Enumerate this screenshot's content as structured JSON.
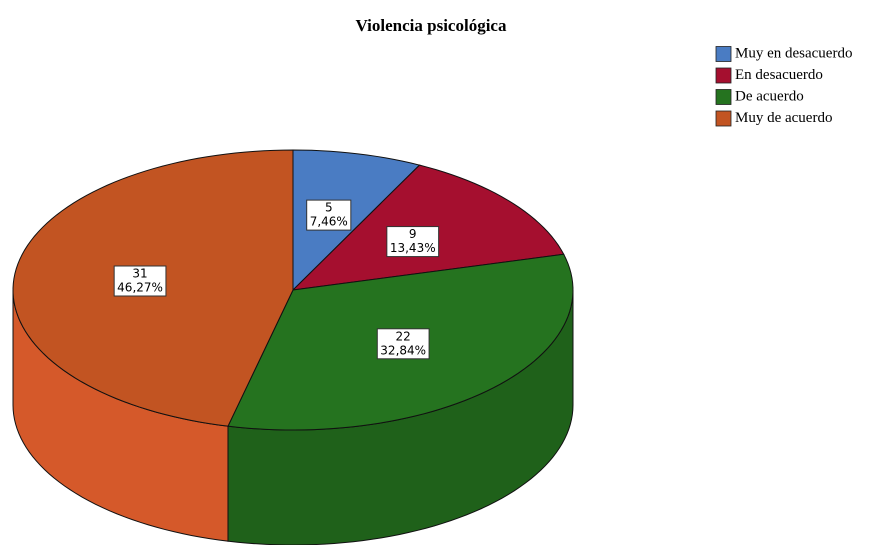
{
  "chart_data": {
    "type": "pie",
    "title": "Violencia psicológica",
    "categories": [
      "Muy en desacuerdo",
      "En desacuerdo",
      "De acuerdo",
      "Muy de acuerdo"
    ],
    "values": [
      7.46,
      13.43,
      32.84,
      46.27
    ],
    "value_labels": [
      "7,46%",
      "13,43%",
      "32,84%",
      "46,27%"
    ],
    "counts": [
      5,
      9,
      22,
      31
    ],
    "colors": [
      "#4a7cc3",
      "#a50f2f",
      "#25731f",
      "#c25422"
    ],
    "side_colors": [
      "#3c67a6",
      "#8a0c27",
      "#1f611a",
      "#d5592a"
    ],
    "legend": "top-right"
  }
}
